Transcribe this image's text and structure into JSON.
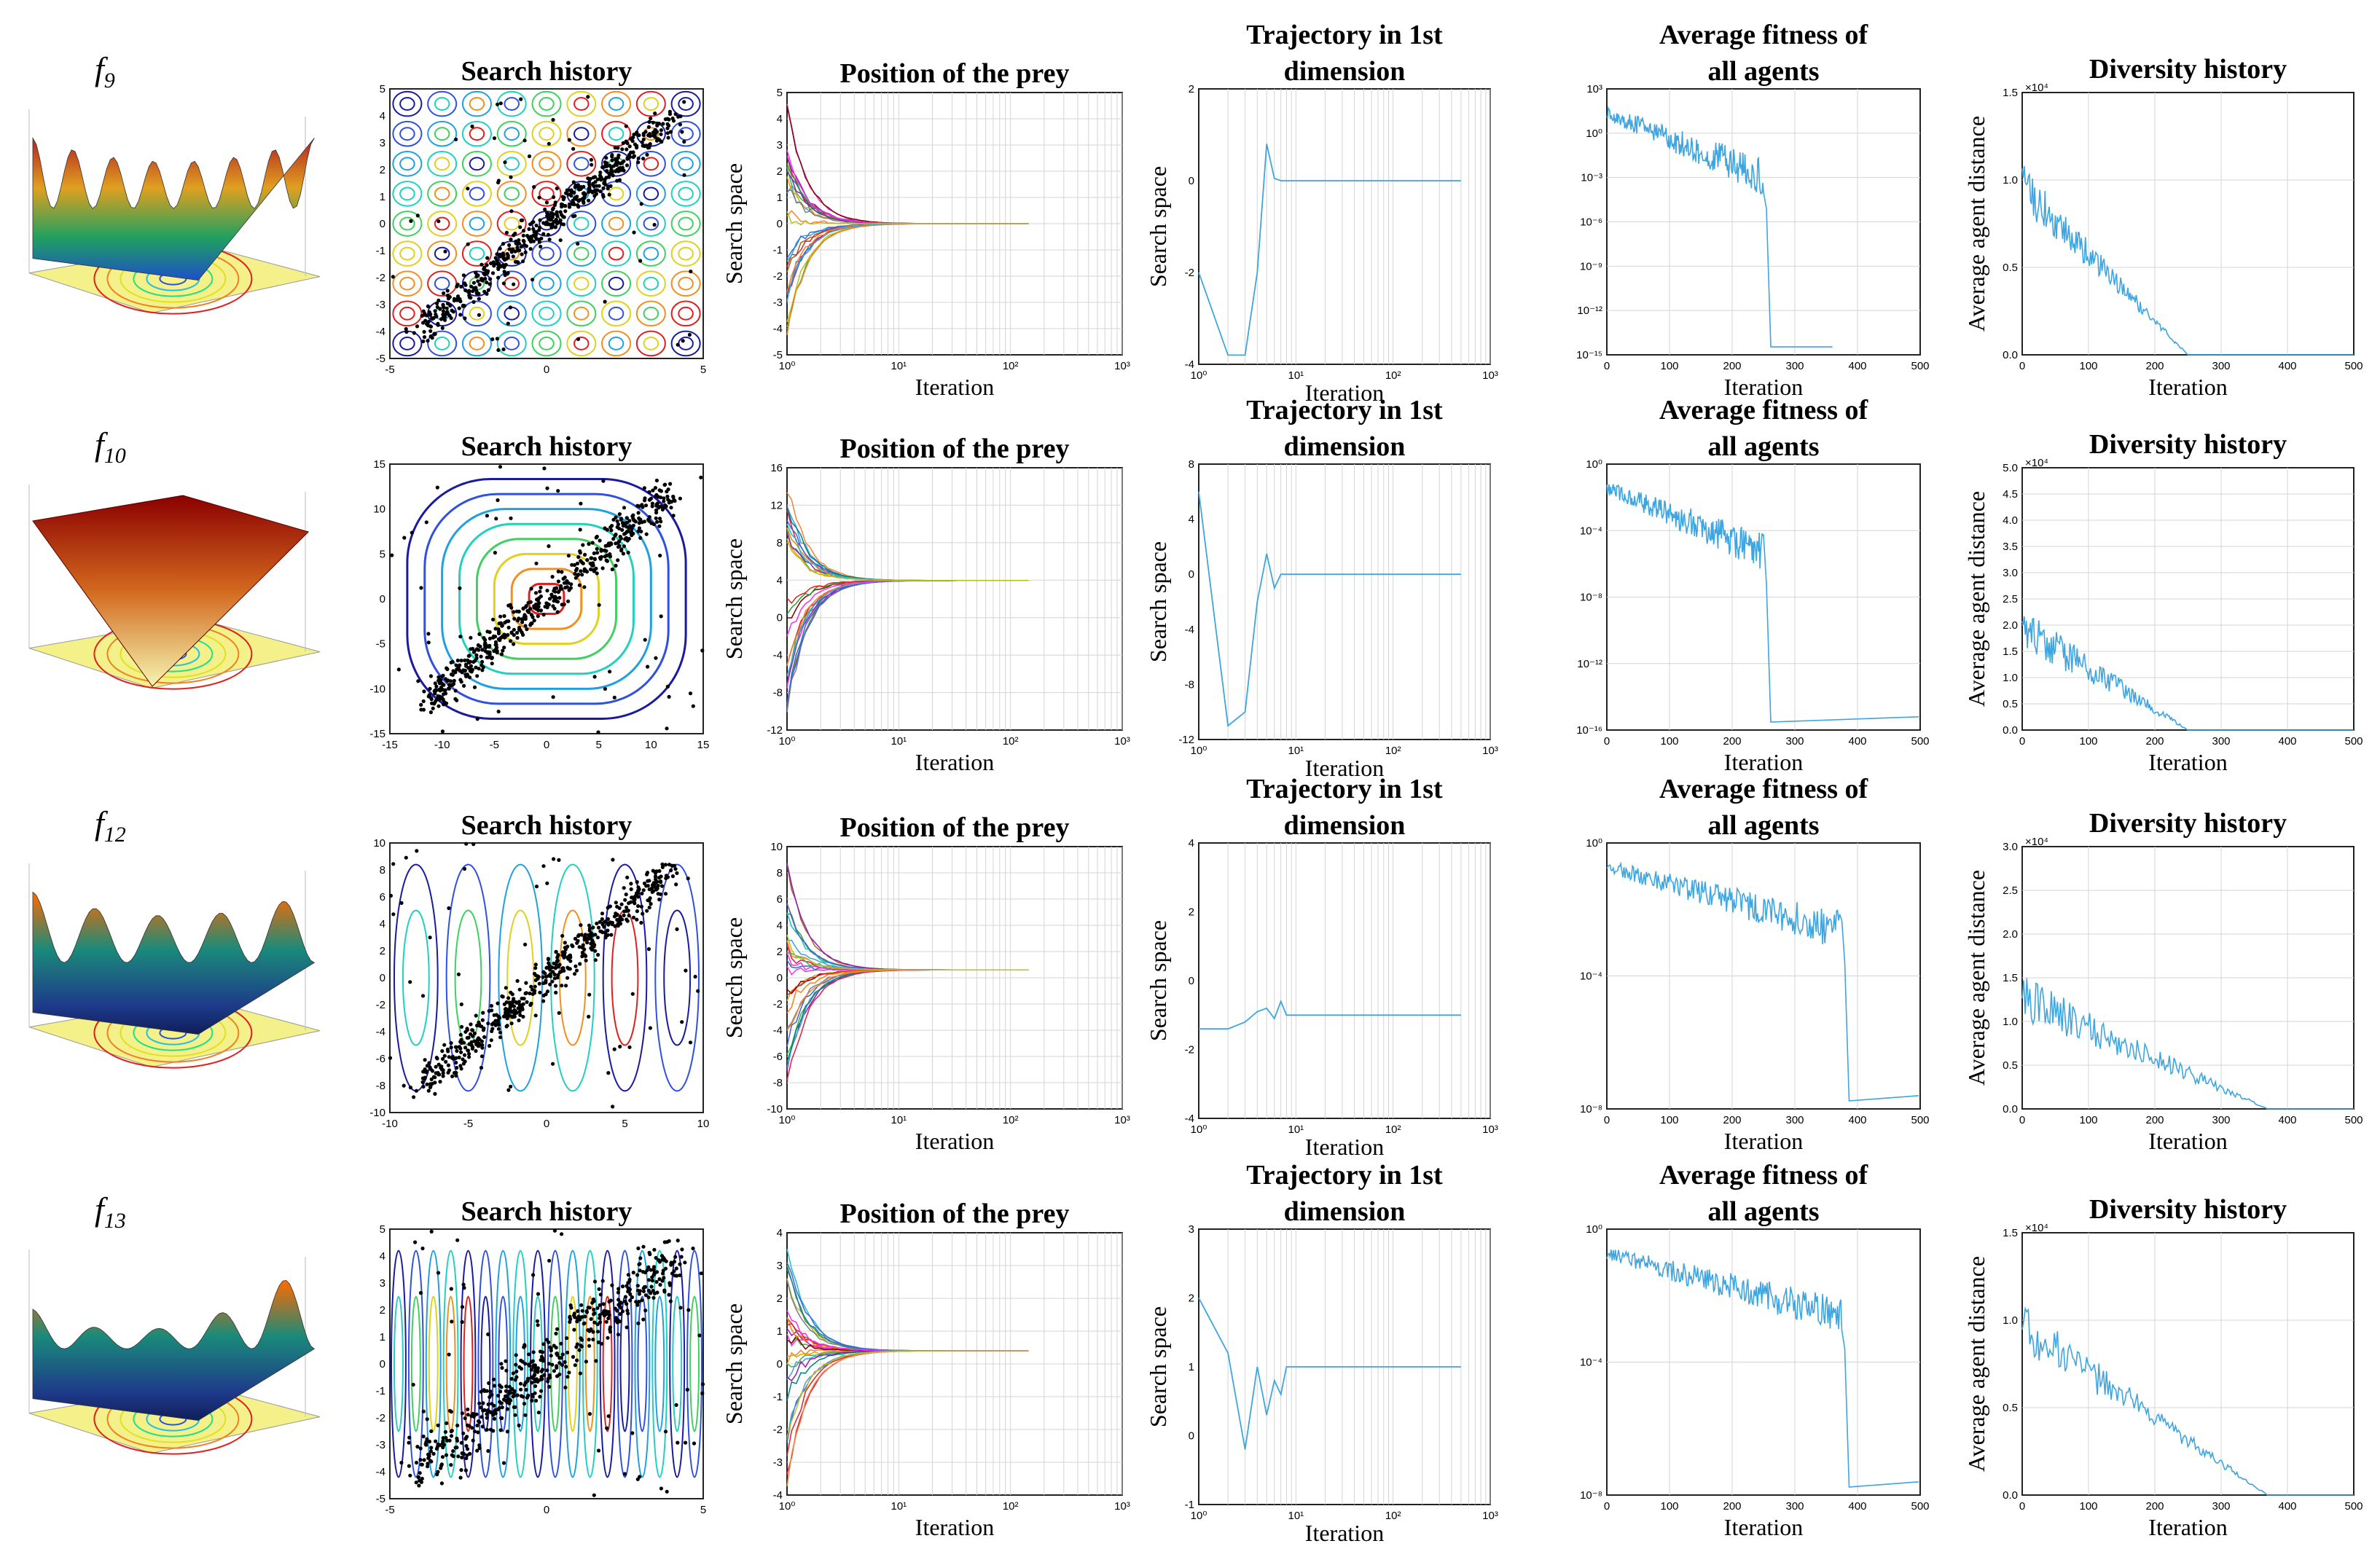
{
  "rows": [
    {
      "function_label": "f",
      "function_sub": "9",
      "search_history_title": "Search history",
      "position_title": "Position of the prey",
      "trajectory_title_1": "Trajectory in 1st",
      "trajectory_title_2": "dimension",
      "fitness_title_1": "Average fitness of",
      "fitness_title_2": "all agents",
      "diversity_title": "Diversity history"
    },
    {
      "function_label": "f",
      "function_sub": "10",
      "search_history_title": "Search history",
      "position_title": "Position of the prey",
      "trajectory_title_1": "Trajectory in 1st",
      "trajectory_title_2": "dimension",
      "fitness_title_1": "Average fitness of",
      "fitness_title_2": "all agents",
      "diversity_title": "Diversity history"
    },
    {
      "function_label": "f",
      "function_sub": "12",
      "search_history_title": "Search history",
      "position_title": "Position of the prey",
      "trajectory_title_1": "Trajectory in 1st",
      "trajectory_title_2": "dimension",
      "fitness_title_1": "Average fitness of",
      "fitness_title_2": "all agents",
      "diversity_title": "Diversity history"
    },
    {
      "function_label": "f",
      "function_sub": "13",
      "search_history_title": "Search history",
      "position_title": "Position of the prey",
      "trajectory_title_1": "Trajectory in 1st",
      "trajectory_title_2": "dimension",
      "fitness_title_1": "Average fitness of",
      "fitness_title_2": "all agents",
      "diversity_title": "Diversity history"
    }
  ],
  "labels": {
    "iteration": "Iteration",
    "search_space": "Search space",
    "avg_agent_distance": "Average agent distance",
    "x10_4": "×10⁴"
  },
  "chart_data": [
    {
      "type": "line",
      "panel": "position",
      "row": 0,
      "ylim": [
        -5,
        5
      ],
      "yticks": [
        "5",
        "4",
        "3",
        "2",
        "1",
        "0",
        "-1",
        "-2",
        "-3",
        "-4",
        "-5"
      ],
      "xticks": [
        "10⁰",
        "10¹",
        "10²",
        "10³"
      ]
    },
    {
      "type": "line",
      "panel": "trajectory",
      "row": 0,
      "ylim": [
        -4,
        2
      ],
      "yticks": [
        "2",
        "0",
        "-2",
        "-4"
      ],
      "xticks": [
        "10⁰",
        "10¹",
        "10²",
        "10³"
      ],
      "x": [
        1,
        2,
        3,
        4,
        5,
        6,
        7,
        8,
        10,
        500
      ],
      "y": [
        -2,
        -3.8,
        -3.8,
        -2,
        0.8,
        0.05,
        0,
        0,
        0,
        0
      ]
    },
    {
      "type": "line",
      "panel": "fitness",
      "row": 0,
      "yscale": "log",
      "yticks": [
        "10³",
        "10⁰",
        "10⁻³",
        "10⁻⁶",
        "10⁻⁹",
        "10⁻¹²",
        "10⁻¹⁵"
      ],
      "xticks": [
        "0",
        "100",
        "200",
        "300",
        "400",
        "500"
      ],
      "xlim": [
        0,
        500
      ],
      "drop_at": 250,
      "floor": "10⁻¹⁵"
    },
    {
      "type": "line",
      "panel": "diversity",
      "row": 0,
      "ylim": [
        0,
        1.5
      ],
      "yticks": [
        "1.5",
        "1.0",
        "0.5",
        "0.0"
      ],
      "xticks": [
        "0",
        "100",
        "200",
        "300",
        "400",
        "500"
      ],
      "scale_note": "×10⁴",
      "reaches_zero_at": 250
    },
    {
      "type": "line",
      "panel": "position",
      "row": 1,
      "ylim": [
        -12,
        16
      ],
      "yticks": [
        "16",
        "12",
        "8",
        "4",
        "0",
        "-4",
        "-8",
        "-12"
      ],
      "xticks": [
        "10⁰",
        "10¹",
        "10²",
        "10³"
      ]
    },
    {
      "type": "line",
      "panel": "trajectory",
      "row": 1,
      "ylim": [
        -12,
        8
      ],
      "yticks": [
        "8",
        "4",
        "0",
        "-4",
        "-8",
        "-12"
      ],
      "xticks": [
        "10⁰",
        "10¹",
        "10²",
        "10³"
      ],
      "x": [
        1,
        2,
        3,
        4,
        5,
        6,
        7,
        8,
        10,
        500
      ],
      "y": [
        6,
        -11,
        -10,
        -2,
        1.5,
        -1,
        0,
        0,
        0,
        0
      ]
    },
    {
      "type": "line",
      "panel": "fitness",
      "row": 1,
      "yscale": "log",
      "yticks": [
        "10⁰",
        "10⁻⁴",
        "10⁻⁸",
        "10⁻¹²",
        "10⁻¹⁶"
      ],
      "xticks": [
        "0",
        "100",
        "200",
        "300",
        "400",
        "500"
      ],
      "xlim": [
        0,
        500
      ],
      "drop_at": 250
    },
    {
      "type": "line",
      "panel": "diversity",
      "row": 1,
      "ylim": [
        0,
        5
      ],
      "yticks": [
        "5.0",
        "4.5",
        "4.0",
        "3.5",
        "3.0",
        "2.5",
        "2.0",
        "1.5",
        "1.0",
        "0.5",
        "0.0"
      ],
      "xticks": [
        "0",
        "100",
        "200",
        "300",
        "400",
        "500"
      ],
      "scale_note": "×10⁴",
      "reaches_zero_at": 250
    },
    {
      "type": "line",
      "panel": "position",
      "row": 2,
      "ylim": [
        -10,
        10
      ],
      "yticks": [
        "10",
        "8",
        "6",
        "4",
        "2",
        "0",
        "-2",
        "-4",
        "-6",
        "-8",
        "-10"
      ],
      "xticks": [
        "10⁰",
        "10¹",
        "10²",
        "10³"
      ]
    },
    {
      "type": "line",
      "panel": "trajectory",
      "row": 2,
      "ylim": [
        -4,
        4
      ],
      "yticks": [
        "4",
        "2",
        "0",
        "-2",
        "-4"
      ],
      "xticks": [
        "10⁰",
        "10¹",
        "10²",
        "10³"
      ],
      "x": [
        1,
        2,
        3,
        4,
        5,
        6,
        7,
        8,
        10,
        500
      ],
      "y": [
        -1.4,
        -1.4,
        -1.2,
        -0.9,
        -0.8,
        -1.1,
        -0.6,
        -1.0,
        -1.0,
        -1.0
      ]
    },
    {
      "type": "line",
      "panel": "fitness",
      "row": 2,
      "yscale": "log",
      "yticks": [
        "10⁰",
        "10⁻⁴",
        "10⁻⁸"
      ],
      "xticks": [
        "0",
        "100",
        "200",
        "300",
        "400",
        "500"
      ],
      "xlim": [
        0,
        500
      ],
      "drop_at": 375
    },
    {
      "type": "line",
      "panel": "diversity",
      "row": 2,
      "ylim": [
        0,
        3
      ],
      "yticks": [
        "3.0",
        "2.5",
        "2.0",
        "1.5",
        "1.0",
        "0.5",
        "0.0"
      ],
      "xticks": [
        "0",
        "100",
        "200",
        "300",
        "400",
        "500"
      ],
      "scale_note": "×10⁴",
      "reaches_zero_at": 370
    },
    {
      "type": "line",
      "panel": "position",
      "row": 3,
      "ylim": [
        -4,
        4
      ],
      "yticks": [
        "4",
        "3",
        "2",
        "1",
        "0",
        "-1",
        "-2",
        "-3",
        "-4"
      ],
      "xticks": [
        "10⁰",
        "10¹",
        "10²",
        "10³"
      ]
    },
    {
      "type": "line",
      "panel": "trajectory",
      "row": 3,
      "ylim": [
        -1,
        3
      ],
      "yticks": [
        "3",
        "2",
        "1",
        "0",
        "-1"
      ],
      "xticks": [
        "10⁰",
        "10¹",
        "10²",
        "10³"
      ],
      "x": [
        1,
        2,
        3,
        4,
        5,
        6,
        7,
        8,
        10,
        500
      ],
      "y": [
        2,
        1.2,
        -0.2,
        1,
        0.3,
        0.8,
        0.6,
        1,
        1,
        1
      ]
    },
    {
      "type": "line",
      "panel": "fitness",
      "row": 3,
      "yscale": "log",
      "yticks": [
        "10⁰",
        "10⁻⁴",
        "10⁻⁸"
      ],
      "xticks": [
        "0",
        "100",
        "200",
        "300",
        "400",
        "500"
      ],
      "xlim": [
        0,
        500
      ],
      "drop_at": 375
    },
    {
      "type": "line",
      "panel": "diversity",
      "row": 3,
      "ylim": [
        0,
        1.5
      ],
      "yticks": [
        "1.5",
        "1.0",
        "0.5",
        "0.0"
      ],
      "xticks": [
        "0",
        "100",
        "200",
        "300",
        "400",
        "500"
      ],
      "scale_note": "×10⁴",
      "reaches_zero_at": 370
    }
  ],
  "search_history": [
    {
      "xticks": [
        "-5",
        "0",
        "5"
      ],
      "yticks": [
        "5",
        "4",
        "3",
        "2",
        "1",
        "0",
        "-1",
        "-2",
        "-3",
        "-4",
        "-5"
      ]
    },
    {
      "xticks": [
        "-15",
        "-10",
        "-5",
        "0",
        "5",
        "10",
        "15"
      ],
      "yticks": [
        "15",
        "10",
        "5",
        "0",
        "-5",
        "-10",
        "-15"
      ]
    },
    {
      "xticks": [
        "-10",
        "-5",
        "0",
        "5",
        "10"
      ],
      "yticks": [
        "10",
        "8",
        "6",
        "4",
        "2",
        "0",
        "-2",
        "-4",
        "-6",
        "-8",
        "-10"
      ]
    },
    {
      "xticks": [
        "-5",
        "0",
        "5"
      ],
      "yticks": [
        "5",
        "4",
        "3",
        "2",
        "1",
        "0",
        "-1",
        "-2",
        "-3",
        "-4",
        "-5"
      ]
    }
  ]
}
